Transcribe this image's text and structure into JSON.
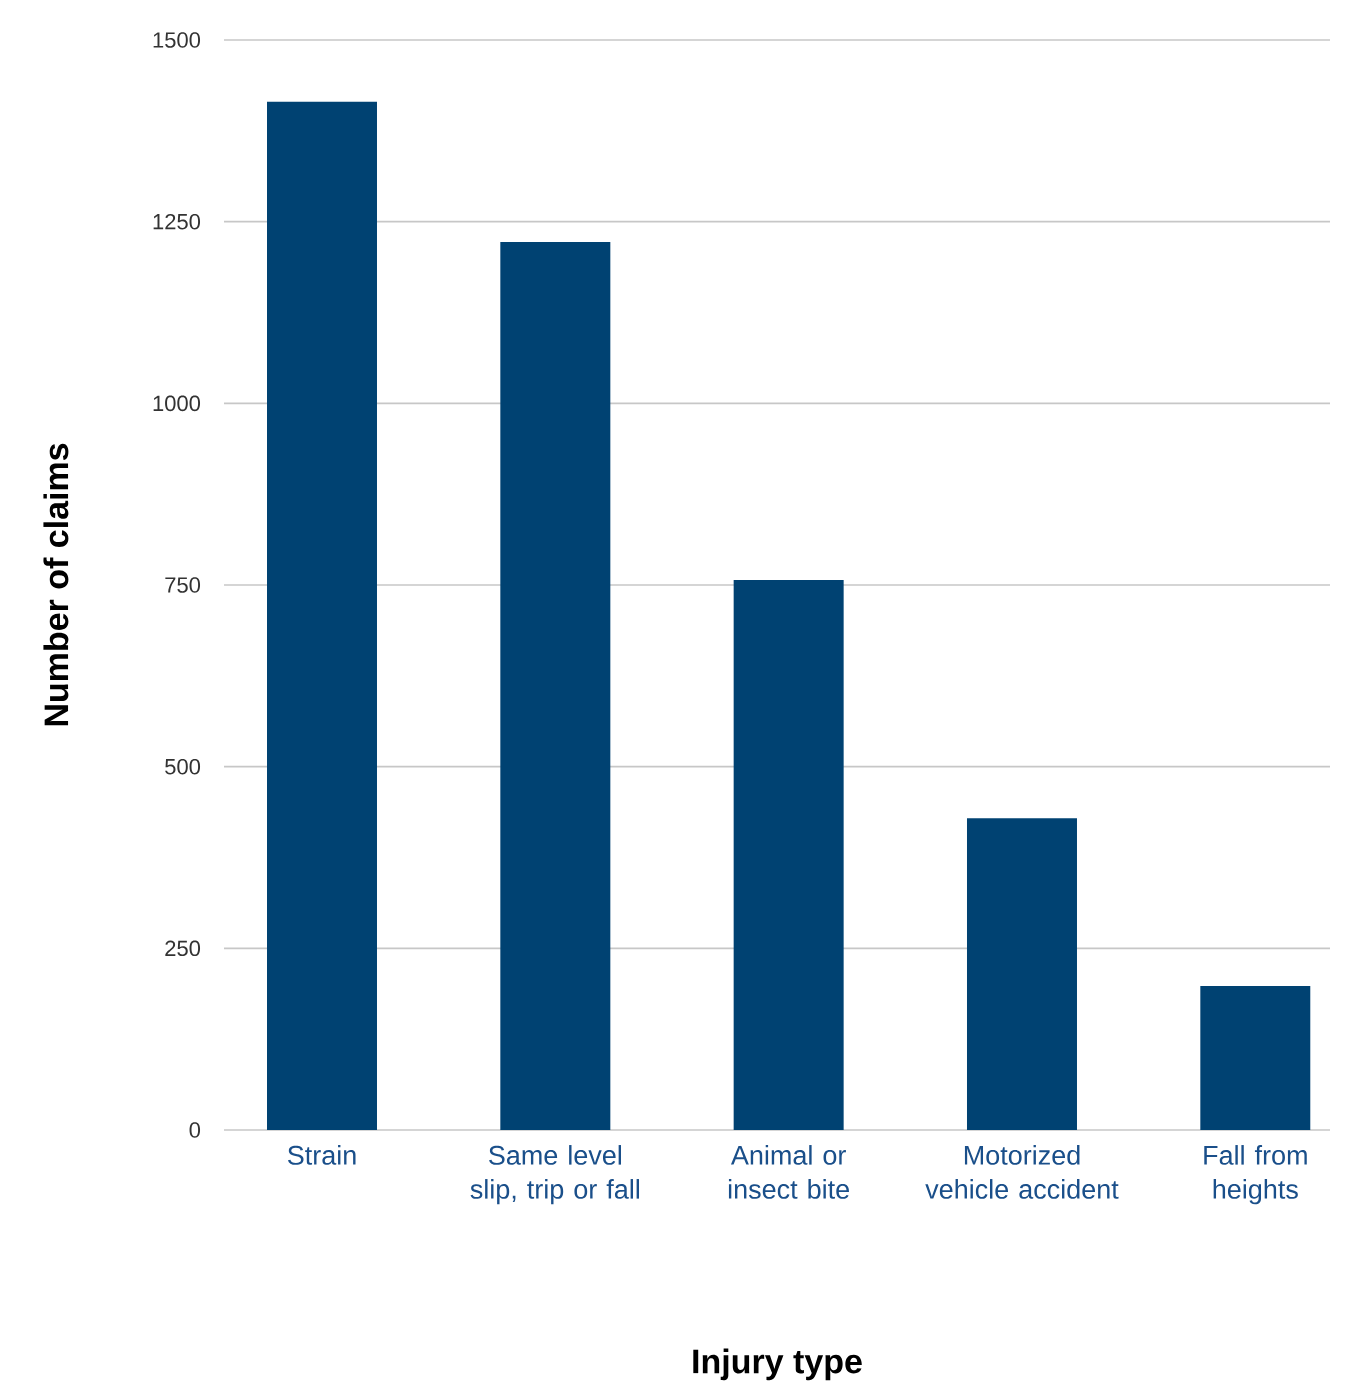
{
  "chart_data": {
    "type": "bar",
    "categories": [
      "Strain",
      "Same level slip, trip or fall",
      "Animal or insect bite",
      "Motorized vehicle accident",
      "Fall from heights"
    ],
    "values": [
      1415,
      1222,
      757,
      429,
      198
    ],
    "color": "#004272",
    "xlabel": "Injury type",
    "ylabel": "Number of claims",
    "ylim": [
      0,
      1500
    ],
    "yticks": [
      0,
      250,
      500,
      750,
      1000,
      1250,
      1500
    ],
    "grid": "y"
  }
}
